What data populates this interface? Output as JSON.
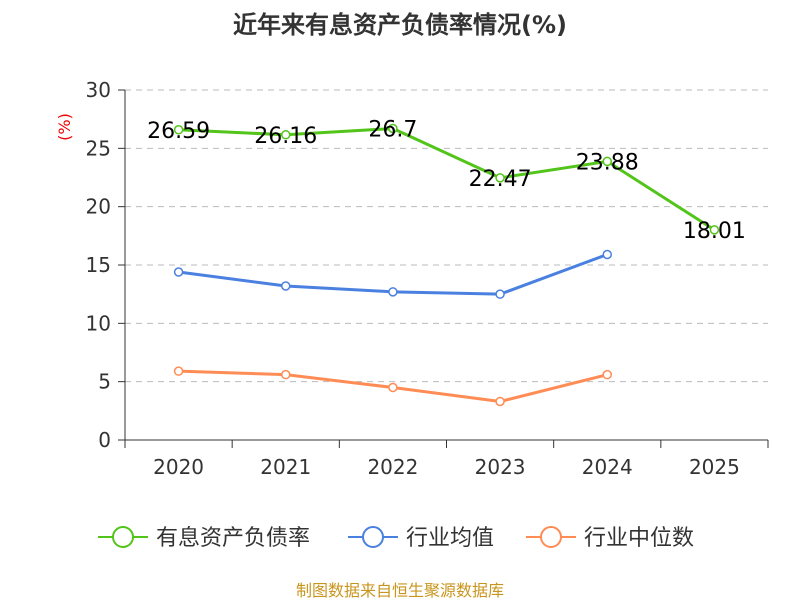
{
  "chart_data": {
    "type": "line",
    "title": "近年来有息资产负债率情况(%)",
    "ylabel": "(%)",
    "xlabel": "",
    "ylim": [
      0,
      30
    ],
    "yticks": [
      "0",
      "5",
      "10",
      "15",
      "20",
      "25",
      "30"
    ],
    "grid": true,
    "categories": [
      "2020",
      "2021",
      "2022",
      "2023",
      "2024",
      "2025"
    ],
    "series": [
      {
        "name": "有息资产负债率",
        "color": "#52c41a",
        "values": [
          26.59,
          26.16,
          26.7,
          22.47,
          23.88,
          18.01
        ],
        "labels": [
          "26.59",
          "26.16",
          "26.7",
          "22.47",
          "23.88",
          "18.01"
        ]
      },
      {
        "name": "行业均值",
        "color": "#4a80e0",
        "values": [
          14.4,
          13.2,
          12.7,
          12.5,
          15.9,
          null
        ]
      },
      {
        "name": "行业中位数",
        "color": "#ff8c55",
        "values": [
          5.9,
          5.6,
          4.5,
          3.3,
          5.6,
          null
        ]
      }
    ],
    "legend_position": "bottom",
    "source": "制图数据来自恒生聚源数据库"
  }
}
